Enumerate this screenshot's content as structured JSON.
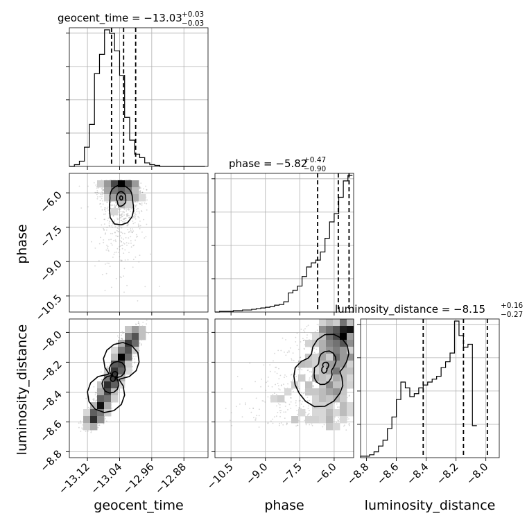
{
  "chart_data": {
    "type": "corner",
    "params": [
      "geocent_time",
      "phase",
      "luminosity_distance"
    ],
    "axis_labels": [
      "geocent_time",
      "phase",
      "luminosity_distance"
    ],
    "titles": [
      {
        "prefix": "geocent_time = ",
        "median": "−13.03",
        "plus": "+0.03",
        "minus": "−0.03"
      },
      {
        "prefix": "phase = ",
        "median": "−5.82",
        "plus": "+0.47",
        "minus": "−0.90"
      },
      {
        "prefix": "luminosity_distance = ",
        "median": "−8.15",
        "plus": "+0.16",
        "minus": "−0.27"
      }
    ],
    "ranges": [
      [
        -13.165,
        -12.82
      ],
      [
        -11.2,
        -5.15
      ],
      [
        -8.84,
        -7.91
      ]
    ],
    "ticks": {
      "geocent_time": [
        {
          "v": -13.12,
          "label": "−13.12"
        },
        {
          "v": -13.04,
          "label": "−13.04"
        },
        {
          "v": -12.96,
          "label": "−12.96"
        },
        {
          "v": -12.88,
          "label": "−12.88"
        }
      ],
      "phase": [
        {
          "v": -10.5,
          "label": "−10.5"
        },
        {
          "v": -9.0,
          "label": "−9.0"
        },
        {
          "v": -7.5,
          "label": "−7.5"
        },
        {
          "v": -6.0,
          "label": "−6.0"
        }
      ],
      "luminosity_distance": [
        {
          "v": -8.8,
          "label": "−8.8"
        },
        {
          "v": -8.6,
          "label": "−8.6"
        },
        {
          "v": -8.4,
          "label": "−8.4"
        },
        {
          "v": -8.2,
          "label": "−8.2"
        },
        {
          "v": -8.0,
          "label": "−8.0"
        }
      ]
    },
    "quantiles": {
      "geocent_time": [
        -13.06,
        -13.03,
        -13.0
      ],
      "phase": [
        -6.72,
        -5.82,
        -5.35
      ],
      "luminosity_distance": [
        -8.42,
        -8.15,
        -7.99
      ]
    },
    "histograms": {
      "geocent_time": {
        "edges_start": -13.165,
        "bin_width": 0.0125,
        "counts": [
          0.0,
          0.5,
          1.5,
          5.5,
          12.0,
          26.5,
          32.0,
          39.0,
          38.0,
          33.0,
          26.0,
          14.0,
          7.5,
          3.5,
          2.5,
          1.0,
          0.5,
          0.3,
          0.0,
          0.0,
          0.0,
          0.0,
          0.0,
          0.0,
          0.0,
          0.0,
          0.0
        ]
      },
      "phase": {
        "edges_start": -11.2,
        "bin_width": 0.2,
        "counts": [
          0.0,
          0.5,
          0.5,
          0.5,
          1.0,
          1.0,
          1.5,
          1.5,
          2.0,
          2.5,
          3.0,
          3.5,
          4.0,
          5.0,
          5.5,
          7.5,
          14.0,
          16.0,
          19.0,
          26.0,
          33.0,
          36.0,
          38.0,
          44.0,
          54.0,
          66.0,
          72.0,
          84.0,
          96.0,
          100.0
        ]
      },
      "luminosity_distance": {
        "edges_start": -8.84,
        "bin_width": 0.03,
        "counts": [
          0.5,
          0.5,
          1.0,
          2.0,
          4.0,
          6.0,
          10.0,
          14.0,
          20.0,
          26.0,
          24.0,
          21.0,
          22.0,
          24.0,
          25.0,
          26.0,
          27.0,
          28.0,
          31.0,
          33.0,
          36.0,
          47.0,
          42.0,
          38.0,
          39.0,
          11.0
        ]
      }
    },
    "grid": true
  }
}
